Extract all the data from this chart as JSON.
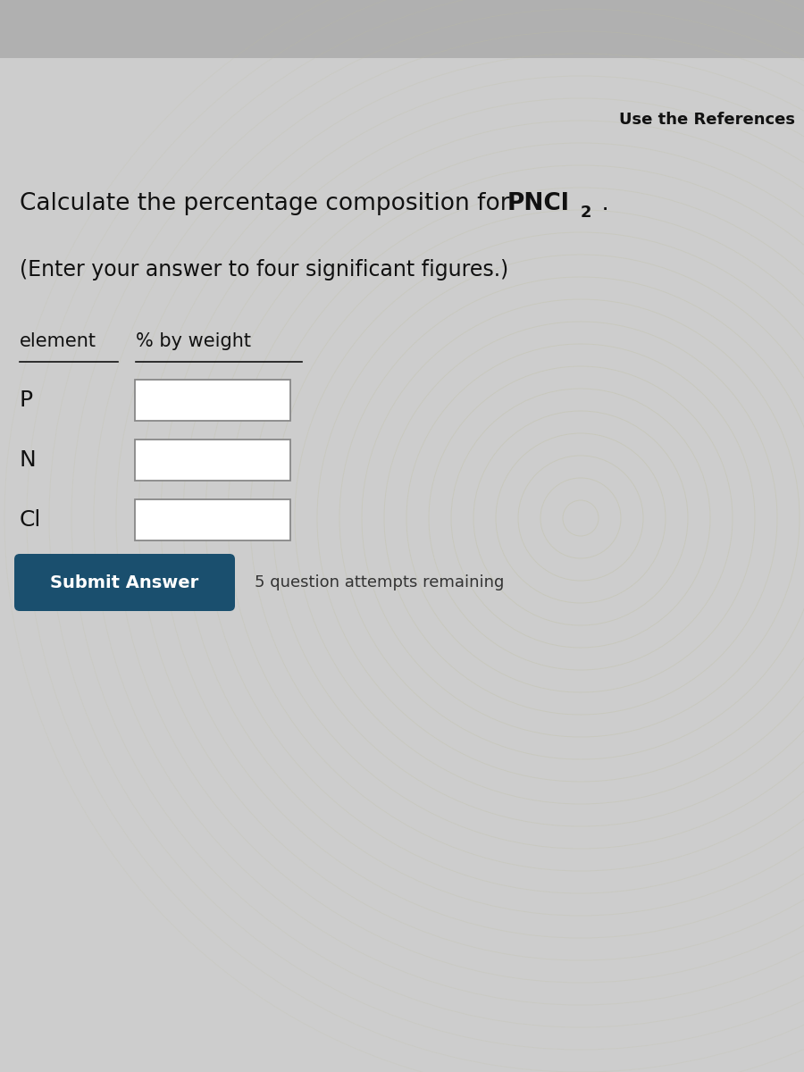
{
  "background_color": "#c8c8c8",
  "top_bar_color": "#b0b0b0",
  "content_bg": "#cdcdcd",
  "use_references_text": "Use the References",
  "title_text_plain": "Calculate the percentage composition for ",
  "title_formula": "PNCl",
  "title_formula_subscript": "2",
  "subtitle_text": "(Enter your answer to four significant figures.)",
  "table_header_element": "element",
  "table_header_weight": "% by weight",
  "elements": [
    "P",
    "N",
    "Cl"
  ],
  "input_box_color": "#ffffff",
  "input_box_border": "#888888",
  "submit_button_text": "Submit Answer",
  "submit_button_color": "#1a4f6e",
  "submit_button_text_color": "#ffffff",
  "attempts_text": "5 question attempts remaining",
  "attempts_text_color": "#333333",
  "watermark_color": "#c0c0a0",
  "title_fontsize": 19,
  "subtitle_fontsize": 17,
  "header_fontsize": 15,
  "element_fontsize": 18,
  "button_fontsize": 14,
  "attempts_fontsize": 13
}
